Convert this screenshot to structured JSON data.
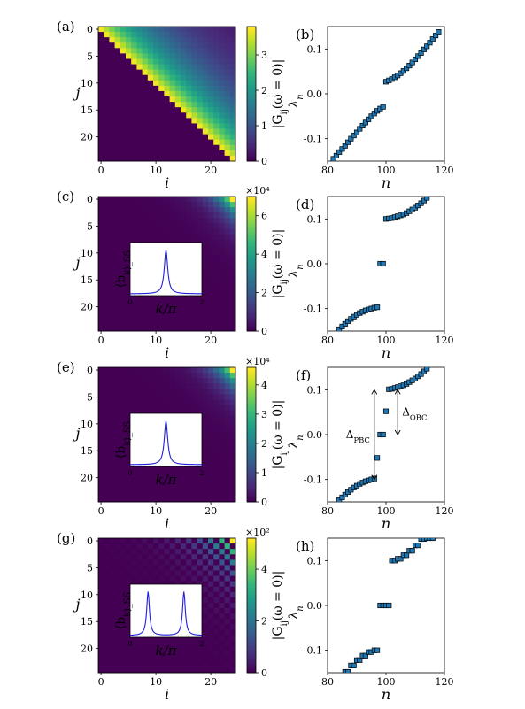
{
  "figure": {
    "colormap": [
      "#440154",
      "#482878",
      "#3e4989",
      "#31688e",
      "#26828e",
      "#1f9e89",
      "#35b779",
      "#6ece58",
      "#b5de2b",
      "#fde725"
    ],
    "marker_face": "#1f77b4",
    "inset_line_color": "#1f1fdd"
  },
  "chart_data": [
    {
      "id": "a",
      "type": "heatmap",
      "panel_label": "(a)",
      "xlabel": "i",
      "ylabel": "j",
      "colorbar_label": "|G_ij(ω = 0)|",
      "x_ticks": [
        "0",
        "10",
        "20"
      ],
      "y_ticks": [
        "0",
        "5",
        "10",
        "15",
        "20"
      ],
      "colorbar_ticks": [
        "0",
        "1",
        "2",
        "3"
      ],
      "colorbar_exponent": "",
      "grid_size": 25,
      "vmax": 3.8,
      "pattern": "upper-triangular"
    },
    {
      "id": "b",
      "type": "scatter",
      "panel_label": "(b)",
      "xlabel": "n",
      "ylabel": "λ_n",
      "xlim": [
        80,
        120
      ],
      "ylim": [
        -0.15,
        0.15
      ],
      "x_ticks": [
        "80",
        "100",
        "120"
      ],
      "y_ticks": [
        "-0.1",
        "0.0",
        "0.1"
      ],
      "x": [
        82,
        83,
        84,
        85,
        86,
        87,
        88,
        89,
        90,
        91,
        92,
        93,
        94,
        95,
        96,
        97,
        98,
        99,
        100,
        101,
        102,
        103,
        104,
        105,
        106,
        107,
        108,
        109,
        110,
        111,
        112,
        113,
        114,
        115,
        116,
        117,
        118
      ],
      "y": [
        -0.145,
        -0.138,
        -0.13,
        -0.123,
        -0.116,
        -0.108,
        -0.1,
        -0.093,
        -0.086,
        -0.078,
        -0.071,
        -0.064,
        -0.057,
        -0.05,
        -0.044,
        -0.038,
        -0.033,
        -0.029,
        0.027,
        0.03,
        0.033,
        0.037,
        0.041,
        0.046,
        0.051,
        0.057,
        0.063,
        0.07,
        0.077,
        0.084,
        0.091,
        0.099,
        0.106,
        0.114,
        0.122,
        0.13,
        0.138
      ]
    },
    {
      "id": "c",
      "type": "heatmap",
      "panel_label": "(c)",
      "xlabel": "i",
      "ylabel": "j",
      "colorbar_label": "|G_ij(ω = 0)|",
      "x_ticks": [
        "0",
        "10",
        "20"
      ],
      "y_ticks": [
        "0",
        "5",
        "10",
        "15",
        "20"
      ],
      "colorbar_ticks": [
        "0",
        "2",
        "4",
        "6"
      ],
      "colorbar_exponent": "×10⁴",
      "grid_size": 25,
      "vmax": 7,
      "pattern": "corner",
      "inset": {
        "ylabel": "⟨b_k⟩_SS",
        "xlabel": "k/π",
        "x_ticks": [
          "0",
          "2"
        ],
        "peaks": [
          1.0
        ],
        "width": 0.1
      }
    },
    {
      "id": "d",
      "type": "scatter",
      "panel_label": "(d)",
      "xlabel": "n",
      "ylabel": "λ_n",
      "xlim": [
        80,
        120
      ],
      "ylim": [
        -0.15,
        0.15
      ],
      "x_ticks": [
        "80",
        "100",
        "120"
      ],
      "y_ticks": [
        "-0.1",
        "0.0",
        "0.1"
      ],
      "x": [
        84,
        85,
        86,
        87,
        88,
        89,
        90,
        91,
        92,
        93,
        94,
        95,
        96,
        97,
        98,
        99,
        100,
        101,
        102,
        103,
        104,
        105,
        106,
        107,
        108,
        109,
        110,
        111,
        112,
        113,
        114
      ],
      "y": [
        -0.146,
        -0.14,
        -0.134,
        -0.128,
        -0.123,
        -0.118,
        -0.114,
        -0.11,
        -0.107,
        -0.104,
        -0.102,
        -0.1,
        -0.098,
        -0.097,
        0.0,
        0.0,
        0.1,
        0.101,
        0.102,
        0.104,
        0.106,
        0.108,
        0.11,
        0.113,
        0.117,
        0.121,
        0.125,
        0.13,
        0.135,
        0.141,
        0.147
      ]
    },
    {
      "id": "e",
      "type": "heatmap",
      "panel_label": "(e)",
      "xlabel": "i",
      "ylabel": "j",
      "colorbar_label": "|G_ij(ω = 0)|",
      "x_ticks": [
        "0",
        "10",
        "20"
      ],
      "y_ticks": [
        "0",
        "5",
        "10",
        "15",
        "20"
      ],
      "colorbar_ticks": [
        "0",
        "1",
        "2",
        "3",
        "4"
      ],
      "colorbar_exponent": "×10⁴",
      "grid_size": 25,
      "vmax": 4.6,
      "pattern": "corner",
      "inset": {
        "ylabel": "⟨b_k⟩_SS",
        "xlabel": "k/π",
        "x_ticks": [
          "0",
          "2"
        ],
        "peaks": [
          1.0
        ],
        "width": 0.1
      }
    },
    {
      "id": "f",
      "type": "scatter",
      "panel_label": "(f)",
      "xlabel": "n",
      "ylabel": "λ_n",
      "xlim": [
        80,
        120
      ],
      "ylim": [
        -0.15,
        0.15
      ],
      "x_ticks": [
        "80",
        "100",
        "120"
      ],
      "y_ticks": [
        "-0.1",
        "0.0",
        "0.1"
      ],
      "x": [
        84,
        85,
        86,
        87,
        88,
        89,
        90,
        91,
        92,
        93,
        94,
        95,
        96,
        97,
        98,
        99,
        100,
        101,
        102,
        103,
        104,
        105,
        106,
        107,
        108,
        109,
        110,
        111,
        112,
        113,
        114
      ],
      "y": [
        -0.146,
        -0.14,
        -0.134,
        -0.128,
        -0.123,
        -0.118,
        -0.114,
        -0.11,
        -0.107,
        -0.104,
        -0.102,
        -0.1,
        -0.098,
        -0.052,
        0.0,
        0.0,
        0.052,
        0.101,
        0.102,
        0.104,
        0.106,
        0.108,
        0.11,
        0.113,
        0.117,
        0.121,
        0.125,
        0.13,
        0.135,
        0.141,
        0.147
      ],
      "annotations": [
        {
          "text": "Δ_PBC",
          "arrow_x": 96,
          "y_from": -0.1,
          "y_to": 0.1,
          "side": "left"
        },
        {
          "text": "Δ_OBC",
          "arrow_x": 104,
          "y_from": 0.0,
          "y_to": 0.1,
          "side": "right"
        }
      ]
    },
    {
      "id": "g",
      "type": "heatmap",
      "panel_label": "(g)",
      "xlabel": "i",
      "ylabel": "j",
      "colorbar_label": "|G_ij(ω = 0)|",
      "x_ticks": [
        "0",
        "10",
        "20"
      ],
      "y_ticks": [
        "0",
        "5",
        "10",
        "15",
        "20"
      ],
      "colorbar_ticks": [
        "0",
        "2",
        "4"
      ],
      "colorbar_exponent": "×10²",
      "grid_size": 25,
      "vmax": 5.2,
      "pattern": "checker",
      "inset": {
        "ylabel": "⟨b_k⟩_SS",
        "xlabel": "k/π",
        "x_ticks": [
          "0",
          "2"
        ],
        "peaks": [
          0.5,
          1.5
        ],
        "width": 0.08
      }
    },
    {
      "id": "h",
      "type": "scatter",
      "panel_label": "(h)",
      "xlabel": "n",
      "ylabel": "λ_n",
      "xlim": [
        80,
        120
      ],
      "ylim": [
        -0.15,
        0.15
      ],
      "x_ticks": [
        "80",
        "100",
        "120"
      ],
      "y_ticks": [
        "-0.1",
        "0.0",
        "0.1"
      ],
      "x": [
        86,
        87,
        88,
        89,
        90,
        91,
        92,
        93,
        94,
        95,
        96,
        97,
        98,
        99,
        100,
        101,
        102,
        103,
        104,
        105,
        106,
        107,
        108,
        109,
        110,
        111,
        112,
        113,
        114,
        115,
        116
      ],
      "y": [
        -0.148,
        -0.148,
        -0.134,
        -0.134,
        -0.122,
        -0.122,
        -0.112,
        -0.112,
        -0.104,
        -0.104,
        -0.1,
        -0.1,
        0.0,
        0.0,
        0.0,
        0.0,
        0.1,
        0.1,
        0.104,
        0.104,
        0.112,
        0.112,
        0.122,
        0.122,
        0.134,
        0.134,
        0.148,
        0.148,
        0.15,
        0.15,
        0.15
      ]
    }
  ]
}
